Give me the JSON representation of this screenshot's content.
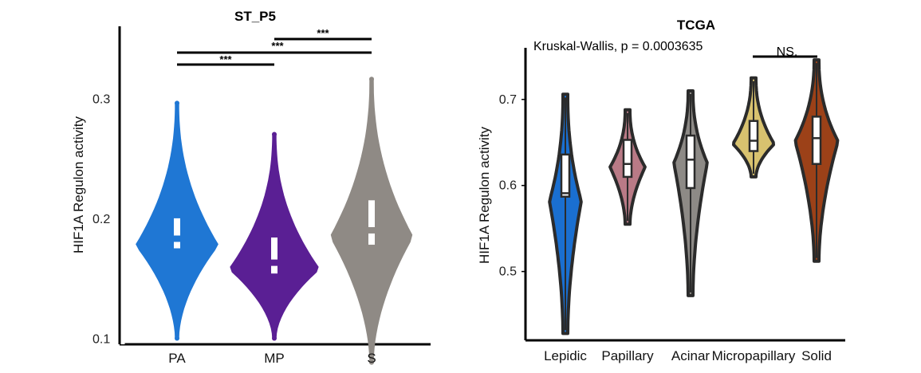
{
  "chart_data": [
    {
      "type": "violin",
      "title": "ST_P5",
      "ylabel": "HIF1A Regulon activity",
      "ylim": [
        0.095,
        0.36
      ],
      "yticks": [
        {
          "value": 0.1,
          "label": "0.1"
        },
        {
          "value": 0.2,
          "label": "0.2"
        },
        {
          "value": 0.3,
          "label": "0.3"
        }
      ],
      "categories": [
        "PA",
        "MP",
        "S"
      ],
      "series": [
        {
          "category": "PA",
          "color": "#1f77d4",
          "min": 0.1,
          "max": 0.296,
          "q1": 0.175,
          "median": 0.183,
          "q3": 0.2
        },
        {
          "category": "MP",
          "color": "#5a1f94",
          "min": 0.1,
          "max": 0.27,
          "q1": 0.154,
          "median": 0.163,
          "q3": 0.184
        },
        {
          "category": "S",
          "color": "#8f8a85",
          "min": 0.08,
          "max": 0.316,
          "q1": 0.178,
          "median": 0.19,
          "q3": 0.215
        }
      ],
      "annotations": [
        {
          "from": "PA",
          "to": "MP",
          "label": "***"
        },
        {
          "from": "PA",
          "to": "S",
          "label": "***"
        },
        {
          "from": "MP",
          "to": "S",
          "label": "***"
        }
      ]
    },
    {
      "type": "violin",
      "title": "TCGA",
      "subtitle": "Kruskal-Wallis, p = 0.0003635",
      "ylabel": "HIF1A Regulon activity",
      "ylim": [
        0.42,
        0.76
      ],
      "yticks": [
        {
          "value": 0.5,
          "label": "0.5"
        },
        {
          "value": 0.6,
          "label": "0.6"
        },
        {
          "value": 0.7,
          "label": "0.7"
        }
      ],
      "categories": [
        "Lepidic",
        "Papillary",
        "Acinar",
        "Micropapillary",
        "Solid"
      ],
      "series": [
        {
          "category": "Lepidic",
          "color": "#1a6fd0",
          "min": 0.428,
          "max": 0.706,
          "q1": 0.587,
          "median": 0.591,
          "q3": 0.636
        },
        {
          "category": "Papillary",
          "color": "#b97a86",
          "min": 0.555,
          "max": 0.688,
          "q1": 0.61,
          "median": 0.625,
          "q3": 0.653
        },
        {
          "category": "Acinar",
          "color": "#8d8a86",
          "min": 0.472,
          "max": 0.71,
          "q1": 0.597,
          "median": 0.63,
          "q3": 0.658
        },
        {
          "category": "Micropapillary",
          "color": "#d8c26f",
          "min": 0.61,
          "max": 0.725,
          "q1": 0.64,
          "median": 0.652,
          "q3": 0.675
        },
        {
          "category": "Solid",
          "color": "#9c4118",
          "min": 0.512,
          "max": 0.746,
          "q1": 0.625,
          "median": 0.655,
          "q3": 0.68
        }
      ],
      "annotations": [
        {
          "from": "Micropapillary",
          "to": "Solid",
          "label": "NS."
        }
      ]
    }
  ]
}
